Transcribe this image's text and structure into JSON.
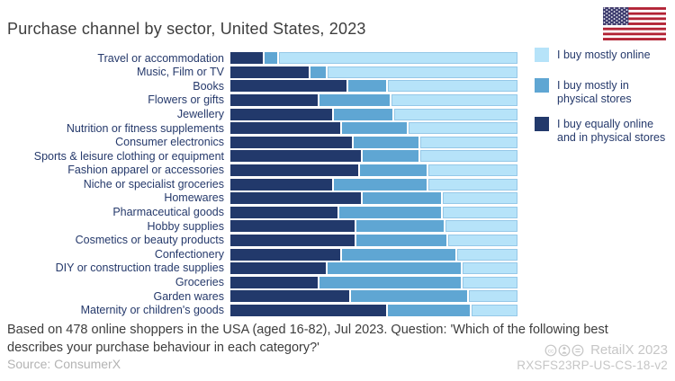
{
  "title": "Purchase channel by sector, United States, 2023",
  "colors": {
    "online": "#b6e3f9",
    "physical": "#5fa6d3",
    "equally": "#22396b"
  },
  "legend": {
    "items": [
      {
        "label": "I buy mostly online",
        "color_key": "online"
      },
      {
        "label": "I buy mostly in\nphysical stores",
        "color_key": "physical"
      },
      {
        "label": "I buy equally online\nand in physical stores",
        "color_key": "equally"
      }
    ]
  },
  "chart_data": {
    "type": "bar",
    "orientation": "horizontal",
    "stacked": true,
    "unit": "percent",
    "xlim": [
      0,
      100
    ],
    "grid": false,
    "legend_position": "right",
    "segment_order": "left-to-right: equally, physical, online",
    "categories": [
      "Travel or accommodation",
      "Music, Film or TV",
      "Books",
      "Flowers or gifts",
      "Jewellery",
      "Nutrition or fitness supplements",
      "Consumer electronics",
      "Sports & leisure clothing or equipment",
      "Fashion apparel or accessories",
      "Niche or specialist groceries",
      "Homewares",
      "Pharmaceutical goods",
      "Hobby supplies",
      "Cosmetics or beauty products",
      "Confectionery",
      "DIY or construction trade supplies",
      "Groceries",
      "Garden wares",
      "Maternity or children's goods"
    ],
    "series": [
      {
        "name": "I buy equally online and in physical stores",
        "color_key": "equally",
        "values": [
          12,
          28,
          41,
          31,
          36,
          39,
          43,
          46,
          45,
          36,
          46,
          38,
          44,
          44,
          39,
          34,
          31,
          42,
          55
        ]
      },
      {
        "name": "I buy mostly in physical stores",
        "color_key": "physical",
        "values": [
          5,
          6,
          14,
          25,
          21,
          23,
          23,
          20,
          24,
          33,
          28,
          36,
          31,
          32,
          40,
          47,
          50,
          41,
          29
        ]
      },
      {
        "name": "I buy mostly online",
        "color_key": "online",
        "values": [
          83,
          66,
          45,
          44,
          43,
          38,
          34,
          34,
          31,
          31,
          26,
          26,
          25,
          24,
          21,
          19,
          19,
          17,
          16
        ]
      }
    ]
  },
  "footer": {
    "note": "Based on 478 online shoppers in the USA (aged 16-82), Jul 2023. Question: 'Which of the following best describes your purchase behaviour in each category?'",
    "source": "Source: ConsumerX"
  },
  "watermark": {
    "brand": "RetailX 2023",
    "ref": "RXSFS23RP-US-CS-18-v2",
    "license_icons": [
      "cc-icon",
      "by-icon",
      "nd-icon"
    ]
  }
}
